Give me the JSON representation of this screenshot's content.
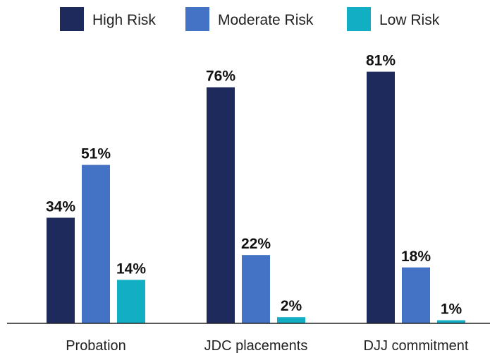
{
  "chart_data": {
    "type": "bar",
    "categories": [
      "Probation",
      "JDC placements",
      "DJJ commitment"
    ],
    "series": [
      {
        "name": "High Risk",
        "values": [
          34,
          76,
          81
        ],
        "labels": [
          "34%",
          "76%",
          "81%"
        ],
        "color": "#1f2a5c"
      },
      {
        "name": "Moderate Risk",
        "values": [
          51,
          22,
          18
        ],
        "labels": [
          "51%",
          "22%",
          "18%"
        ],
        "color": "#4472c4"
      },
      {
        "name": "Low Risk",
        "values": [
          14,
          2,
          1
        ],
        "labels": [
          "14%",
          "2%",
          "1%"
        ],
        "color": "#12afc4"
      }
    ],
    "unit": "%",
    "ylim": [
      0,
      90
    ],
    "grid": false,
    "legend": "top"
  }
}
